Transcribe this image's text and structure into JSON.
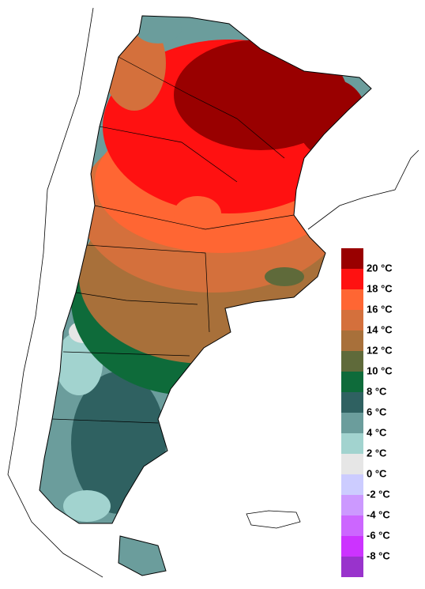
{
  "legend": {
    "colors": [
      "#990000",
      "#ff1111",
      "#ff6633",
      "#d4703c",
      "#a8703a",
      "#5f6a3a",
      "#0e6b3a",
      "#2f6161",
      "#6b9d9c",
      "#a2d3cf",
      "#e6e6e6",
      "#ccccff",
      "#cc99ff",
      "#cc66ff",
      "#cc33ff",
      "#9933cc"
    ],
    "labels": [
      "20 °C",
      "18 °C",
      "16 °C",
      "14 °C",
      "12 °C",
      "10 °C",
      "8 °C",
      "6 °C",
      "4 °C",
      "2 °C",
      "0 °C",
      "-2 °C",
      "-4 °C",
      "-6 °C",
      "-8 °C"
    ]
  }
}
